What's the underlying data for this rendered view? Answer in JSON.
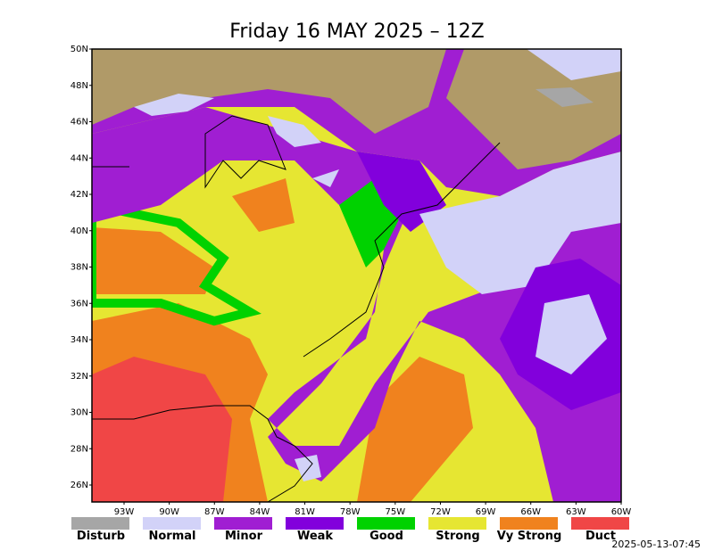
{
  "title": "Friday 16 MAY 2025 – 12Z",
  "latitude_labels": [
    "50N",
    "48N",
    "46N",
    "44N",
    "42N",
    "40N",
    "38N",
    "36N",
    "34N",
    "32N",
    "30N",
    "28N",
    "26N"
  ],
  "longitude_labels": [
    "93W",
    "90W",
    "87W",
    "84W",
    "81W",
    "78W",
    "75W",
    "72W",
    "69W",
    "66W",
    "63W",
    "60W"
  ],
  "legend": [
    {
      "label": "Disturb",
      "color": "#a6a6a6"
    },
    {
      "label": "Normal",
      "color": "#d2d2f8"
    },
    {
      "label": "Minor",
      "color": "#a01ed2"
    },
    {
      "label": "Weak",
      "color": "#8200dc"
    },
    {
      "label": "Good",
      "color": "#00d200"
    },
    {
      "label": "Strong",
      "color": "#e6e632"
    },
    {
      "label": "Vy Strong",
      "color": "#f0821e"
    },
    {
      "label": "Duct",
      "color": "#f04646"
    }
  ],
  "timestamp": "2025-05-13-07:45"
}
